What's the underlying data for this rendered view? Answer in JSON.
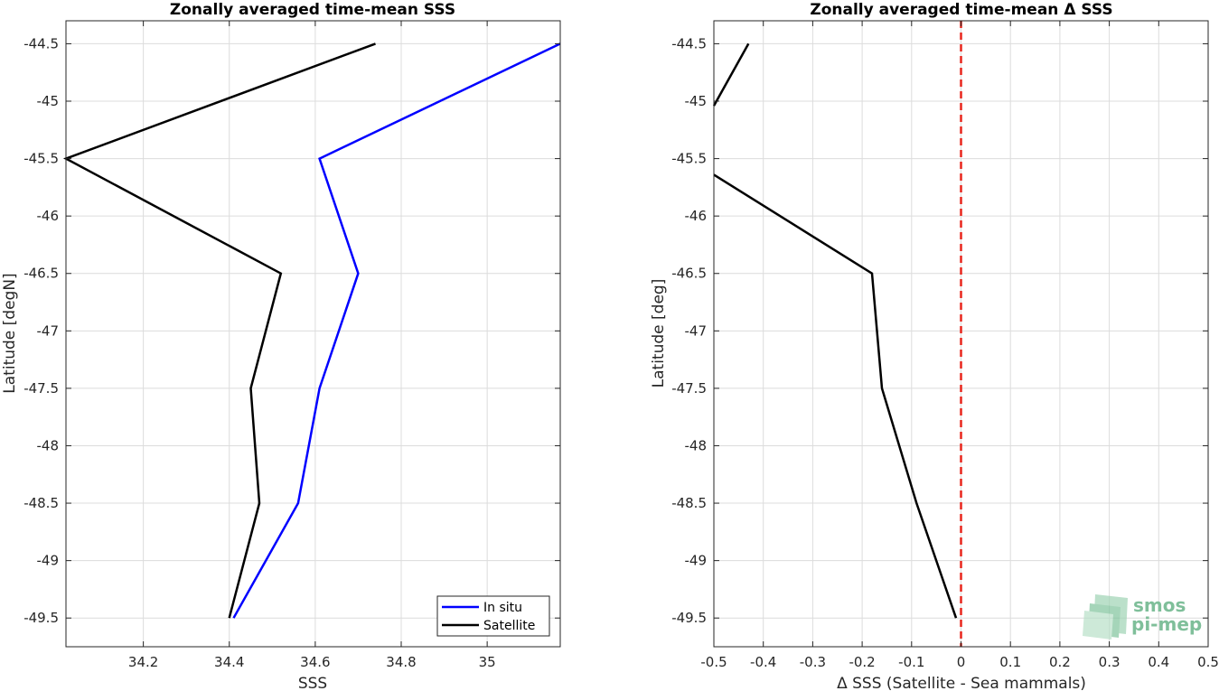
{
  "chart_data": [
    {
      "type": "line",
      "title": "Zonally averaged time-mean SSS",
      "xlabel": "SSS",
      "ylabel": "Latitude [degN]",
      "xlim": [
        34.02,
        35.17
      ],
      "ylim": [
        -49.75,
        -44.3
      ],
      "xticks": [
        34.2,
        34.4,
        34.6,
        34.8,
        35
      ],
      "xtick_labels": [
        "34.2",
        "34.4",
        "34.6",
        "34.8",
        "35"
      ],
      "yticks": [
        -44.5,
        -45,
        -45.5,
        -46,
        -46.5,
        -47,
        -47.5,
        -48,
        -48.5,
        -49,
        -49.5
      ],
      "ytick_labels": [
        "-44.5",
        "-45",
        "-45.5",
        "-46",
        "-46.5",
        "-47",
        "-47.5",
        "-48",
        "-48.5",
        "-49",
        "-49.5"
      ],
      "grid": true,
      "legend_position": "bottom-right",
      "series": [
        {
          "name": "In situ",
          "color": "#0000ff",
          "points": [
            [
              35.17,
              -44.5
            ],
            [
              34.61,
              -45.5
            ],
            [
              34.7,
              -46.5
            ],
            [
              34.61,
              -47.5
            ],
            [
              34.56,
              -48.5
            ],
            [
              34.41,
              -49.5
            ]
          ]
        },
        {
          "name": "Satellite",
          "color": "#000000",
          "points": [
            [
              34.74,
              -44.5
            ],
            [
              34.02,
              -45.5
            ],
            [
              34.52,
              -46.5
            ],
            [
              34.45,
              -47.5
            ],
            [
              34.47,
              -48.5
            ],
            [
              34.4,
              -49.5
            ]
          ]
        }
      ]
    },
    {
      "type": "line",
      "title": "Zonally averaged time-mean Δ SSS",
      "xlabel": "Δ SSS (Satellite - Sea mammals)",
      "ylabel": "Latitude [deg]",
      "xlim": [
        -0.5,
        0.5
      ],
      "ylim": [
        -49.75,
        -44.3
      ],
      "xticks": [
        -0.5,
        -0.4,
        -0.3,
        -0.2,
        -0.1,
        0,
        0.1,
        0.2,
        0.3,
        0.4,
        0.5
      ],
      "xtick_labels": [
        "-0.5",
        "-0.4",
        "-0.3",
        "-0.2",
        "-0.1",
        "0",
        "0.1",
        "0.2",
        "0.3",
        "0.4",
        "0.5"
      ],
      "yticks": [
        -44.5,
        -45,
        -45.5,
        -46,
        -46.5,
        -47,
        -47.5,
        -48,
        -48.5,
        -49,
        -49.5
      ],
      "ytick_labels": [
        "-44.5",
        "-45",
        "-45.5",
        "-46",
        "-46.5",
        "-47",
        "-47.5",
        "-48",
        "-48.5",
        "-49",
        "-49.5"
      ],
      "grid": true,
      "zero_line_color": "#e8261d",
      "series": [
        {
          "color": "#000000",
          "segments": [
            [
              [
                -0.43,
                -44.5
              ],
              [
                -0.5,
                -45.04
              ]
            ],
            [
              [
                -0.5,
                -45.64
              ],
              [
                -0.18,
                -46.5
              ],
              [
                -0.16,
                -47.5
              ],
              [
                -0.09,
                -48.5
              ],
              [
                -0.01,
                -49.5
              ]
            ]
          ]
        }
      ]
    }
  ],
  "logo": {
    "line1": "smos",
    "line2": "pi-mep",
    "color": "#7fbf9a"
  }
}
